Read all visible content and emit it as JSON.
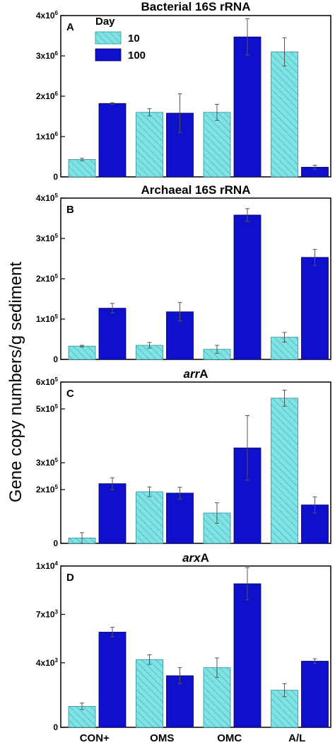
{
  "figure": {
    "ylabel": "Gene copy numbers/g sediment",
    "categories": [
      "CON+",
      "OMS",
      "OMC",
      "A/L"
    ],
    "legend": {
      "title": "Day",
      "labels": [
        "10",
        "100"
      ]
    },
    "colors": {
      "day10_fill": "#7fe3e3",
      "day10_hatch": "#3aa7b0",
      "day100_fill": "#0f10cc",
      "error_bar": "#555555",
      "axis": "#000000"
    }
  },
  "chart_data": [
    {
      "type": "bar",
      "panel": "A",
      "title": "Bacterial 16S rRNA",
      "categories": [
        "CON+",
        "OMS",
        "OMC",
        "A/L"
      ],
      "series": [
        {
          "name": "10",
          "values": [
            430000,
            1600000,
            1600000,
            3100000
          ],
          "errors": [
            30000,
            90000,
            200000,
            350000
          ]
        },
        {
          "name": "100",
          "values": [
            1820000,
            1580000,
            3470000,
            240000
          ],
          "errors": [
            20000,
            480000,
            450000,
            50000
          ]
        }
      ],
      "ylim": [
        0,
        4000000
      ],
      "yticks": [
        0,
        1000000,
        2000000,
        3000000,
        4000000
      ],
      "ytick_labels": [
        {
          "m": "0",
          "e": ""
        },
        {
          "m": "1x10",
          "e": "6"
        },
        {
          "m": "2x10",
          "e": "6"
        },
        {
          "m": "3x10",
          "e": "6"
        },
        {
          "m": "4x10",
          "e": "6"
        }
      ],
      "legend": true
    },
    {
      "type": "bar",
      "panel": "B",
      "title": "Archaeal 16S rRNA",
      "categories": [
        "CON+",
        "OMS",
        "OMC",
        "A/L"
      ],
      "series": [
        {
          "name": "10",
          "values": [
            33000,
            35000,
            25000,
            55000
          ],
          "errors": [
            2000,
            7000,
            10000,
            12000
          ]
        },
        {
          "name": "100",
          "values": [
            127000,
            118000,
            358000,
            253000
          ],
          "errors": [
            12000,
            23000,
            16000,
            20000
          ]
        }
      ],
      "ylim": [
        0,
        400000
      ],
      "yticks": [
        0,
        100000,
        200000,
        300000,
        400000
      ],
      "ytick_labels": [
        {
          "m": "0",
          "e": ""
        },
        {
          "m": "1x10",
          "e": "5"
        },
        {
          "m": "2x10",
          "e": "5"
        },
        {
          "m": "3x10",
          "e": "5"
        },
        {
          "m": "4x10",
          "e": "5"
        }
      ],
      "legend": false
    },
    {
      "type": "bar",
      "panel": "C",
      "title": "arrA",
      "title_italic": "arr",
      "title_rest": "A",
      "categories": [
        "CON+",
        "OMS",
        "OMC",
        "A/L"
      ],
      "series": [
        {
          "name": "10",
          "values": [
            20000,
            192000,
            113000,
            540000
          ],
          "errors": [
            20000,
            18000,
            38000,
            30000
          ]
        },
        {
          "name": "100",
          "values": [
            222000,
            187000,
            355000,
            143000
          ],
          "errors": [
            22000,
            22000,
            120000,
            30000
          ]
        }
      ],
      "ylim": [
        0,
        600000
      ],
      "yticks": [
        0,
        200000,
        300000,
        500000,
        600000
      ],
      "ytick_labels": [
        {
          "m": "0",
          "e": ""
        },
        {
          "m": "2x10",
          "e": "5"
        },
        {
          "m": "3x10",
          "e": "5"
        },
        {
          "m": "5x10",
          "e": "5"
        },
        {
          "m": "6x10",
          "e": "5"
        }
      ],
      "legend": false
    },
    {
      "type": "bar",
      "panel": "D",
      "title": "arxA",
      "title_italic": "arx",
      "title_rest": "A",
      "categories": [
        "CON+",
        "OMS",
        "OMC",
        "A/L"
      ],
      "series": [
        {
          "name": "10",
          "values": [
            1300,
            4200,
            3700,
            2300
          ],
          "errors": [
            200,
            300,
            600,
            400
          ]
        },
        {
          "name": "100",
          "values": [
            5900,
            3200,
            8900,
            4100
          ],
          "errors": [
            300,
            500,
            1000,
            150
          ]
        }
      ],
      "ylim": [
        0,
        10000
      ],
      "yticks": [
        0,
        4000,
        7000,
        10000
      ],
      "ytick_labels": [
        {
          "m": "0",
          "e": ""
        },
        {
          "m": "4x10",
          "e": "3"
        },
        {
          "m": "7x10",
          "e": "3"
        },
        {
          "m": "1x10",
          "e": "4"
        }
      ],
      "legend": false
    }
  ]
}
